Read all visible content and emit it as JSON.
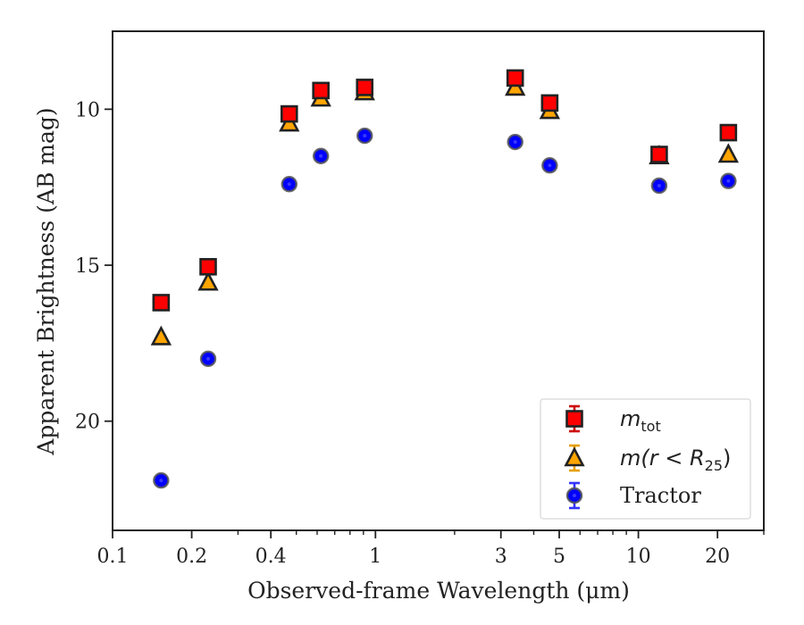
{
  "chart_data": {
    "type": "scatter",
    "xscale": "log",
    "xlim": [
      0.1,
      30
    ],
    "ylim": [
      23.5,
      7.5
    ],
    "y_inverted": true,
    "xlabel": "Observed-frame Wavelength (μm)",
    "ylabel": "Apparent Brightness (AB mag)",
    "x_major_ticks": [
      {
        "value": 0.1,
        "label": "0.1"
      },
      {
        "value": 0.2,
        "label": "0.2"
      },
      {
        "value": 0.4,
        "label": "0.4"
      },
      {
        "value": 1,
        "label": "1"
      },
      {
        "value": 3,
        "label": "3"
      },
      {
        "value": 5,
        "label": "5"
      },
      {
        "value": 10,
        "label": "10"
      },
      {
        "value": 20,
        "label": "20"
      }
    ],
    "x_minor_ticks": [
      0.3,
      0.5,
      0.6,
      0.7,
      0.8,
      0.9,
      2,
      4,
      6,
      7,
      8,
      9,
      30
    ],
    "y_ticks": [
      {
        "value": 10,
        "label": "10"
      },
      {
        "value": 15,
        "label": "15"
      },
      {
        "value": 20,
        "label": "20"
      }
    ],
    "legend_position": "lower-right",
    "series": [
      {
        "name": "m_tot",
        "legend_main": "m",
        "legend_sub": "tot",
        "marker": "square",
        "color": "#ff0000",
        "errcolor": "#cc0000",
        "x": [
          0.153,
          0.231,
          0.47,
          0.62,
          0.91,
          3.4,
          4.6,
          12.0,
          22.0
        ],
        "y": [
          16.2,
          15.05,
          10.15,
          9.4,
          9.3,
          9.0,
          9.8,
          11.45,
          10.75
        ]
      },
      {
        "name": "m(r < R25)",
        "legend_main": "m(r < R",
        "legend_sub": "25",
        "legend_close": ")",
        "marker": "triangle",
        "color": "#ffa500",
        "errcolor": "#e6a000",
        "x": [
          0.153,
          0.231,
          0.47,
          0.62,
          0.91,
          3.4,
          4.6,
          12.0,
          22.0
        ],
        "y": [
          17.3,
          15.55,
          10.45,
          9.65,
          9.45,
          9.3,
          10.05,
          11.5,
          11.45
        ]
      },
      {
        "name": "Tractor",
        "legend_main": "Tractor",
        "marker": "circle",
        "color": "#0000ff",
        "errcolor": "#3333ff",
        "x": [
          0.153,
          0.231,
          0.47,
          0.62,
          0.91,
          3.4,
          4.6,
          12.0,
          22.0
        ],
        "y": [
          21.9,
          18.0,
          12.4,
          11.5,
          10.85,
          11.05,
          11.8,
          12.45,
          12.3
        ]
      }
    ]
  }
}
